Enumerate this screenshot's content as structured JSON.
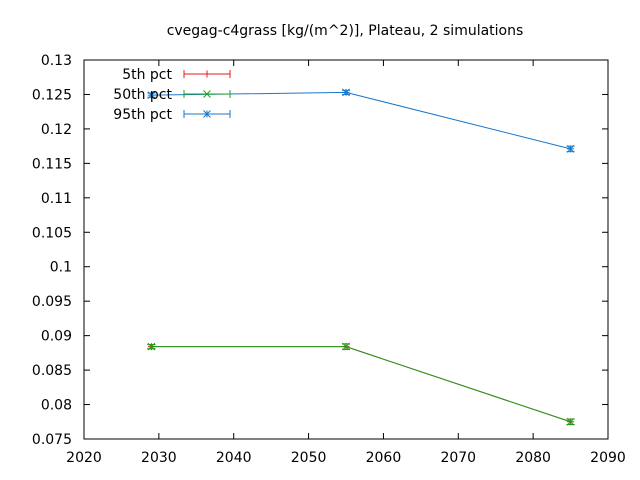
{
  "chart_data": {
    "type": "line",
    "title": "cvegag-c4grass [kg/(m^2)], Plateau, 2 simulations",
    "xlabel": "",
    "ylabel": "",
    "xlim": [
      2020,
      2090
    ],
    "ylim": [
      0.075,
      0.13
    ],
    "x_ticks": [
      2020,
      2030,
      2040,
      2050,
      2060,
      2070,
      2080,
      2090
    ],
    "y_ticks": [
      0.075,
      0.08,
      0.085,
      0.09,
      0.095,
      0.1,
      0.105,
      0.11,
      0.115,
      0.12,
      0.125,
      0.13
    ],
    "x_tick_labels": [
      "2020",
      "2030",
      "2040",
      "2050",
      "2060",
      "2070",
      "2080",
      "2090"
    ],
    "y_tick_labels": [
      "0.075",
      "0.08",
      "0.085",
      "0.09",
      "0.095",
      "0.1",
      "0.105",
      "0.11",
      "0.115",
      "0.12",
      "0.125",
      "0.13"
    ],
    "legend_placement": "top-left",
    "grid": false,
    "series": [
      {
        "name": "5th pct",
        "color": "#e41a1c",
        "marker": "plus",
        "x": [
          2029,
          2055,
          2085
        ],
        "y": [
          0.0884,
          0.0884,
          0.0775
        ],
        "err": [
          0.0003,
          0.0004,
          0.0004
        ]
      },
      {
        "name": "50th pct",
        "color": "#1ca01c",
        "marker": "cross",
        "x": [
          2029,
          2055,
          2085
        ],
        "y": [
          0.0884,
          0.0884,
          0.0775
        ],
        "err": [
          0.0003,
          0.0004,
          0.0004
        ]
      },
      {
        "name": "95th pct",
        "color": "#1a78c8",
        "marker": "star",
        "x": [
          2029,
          2055,
          2085
        ],
        "y": [
          0.1249,
          0.1253,
          0.1171
        ],
        "err": [
          0.0003,
          0.0003,
          0.0004
        ]
      }
    ]
  }
}
